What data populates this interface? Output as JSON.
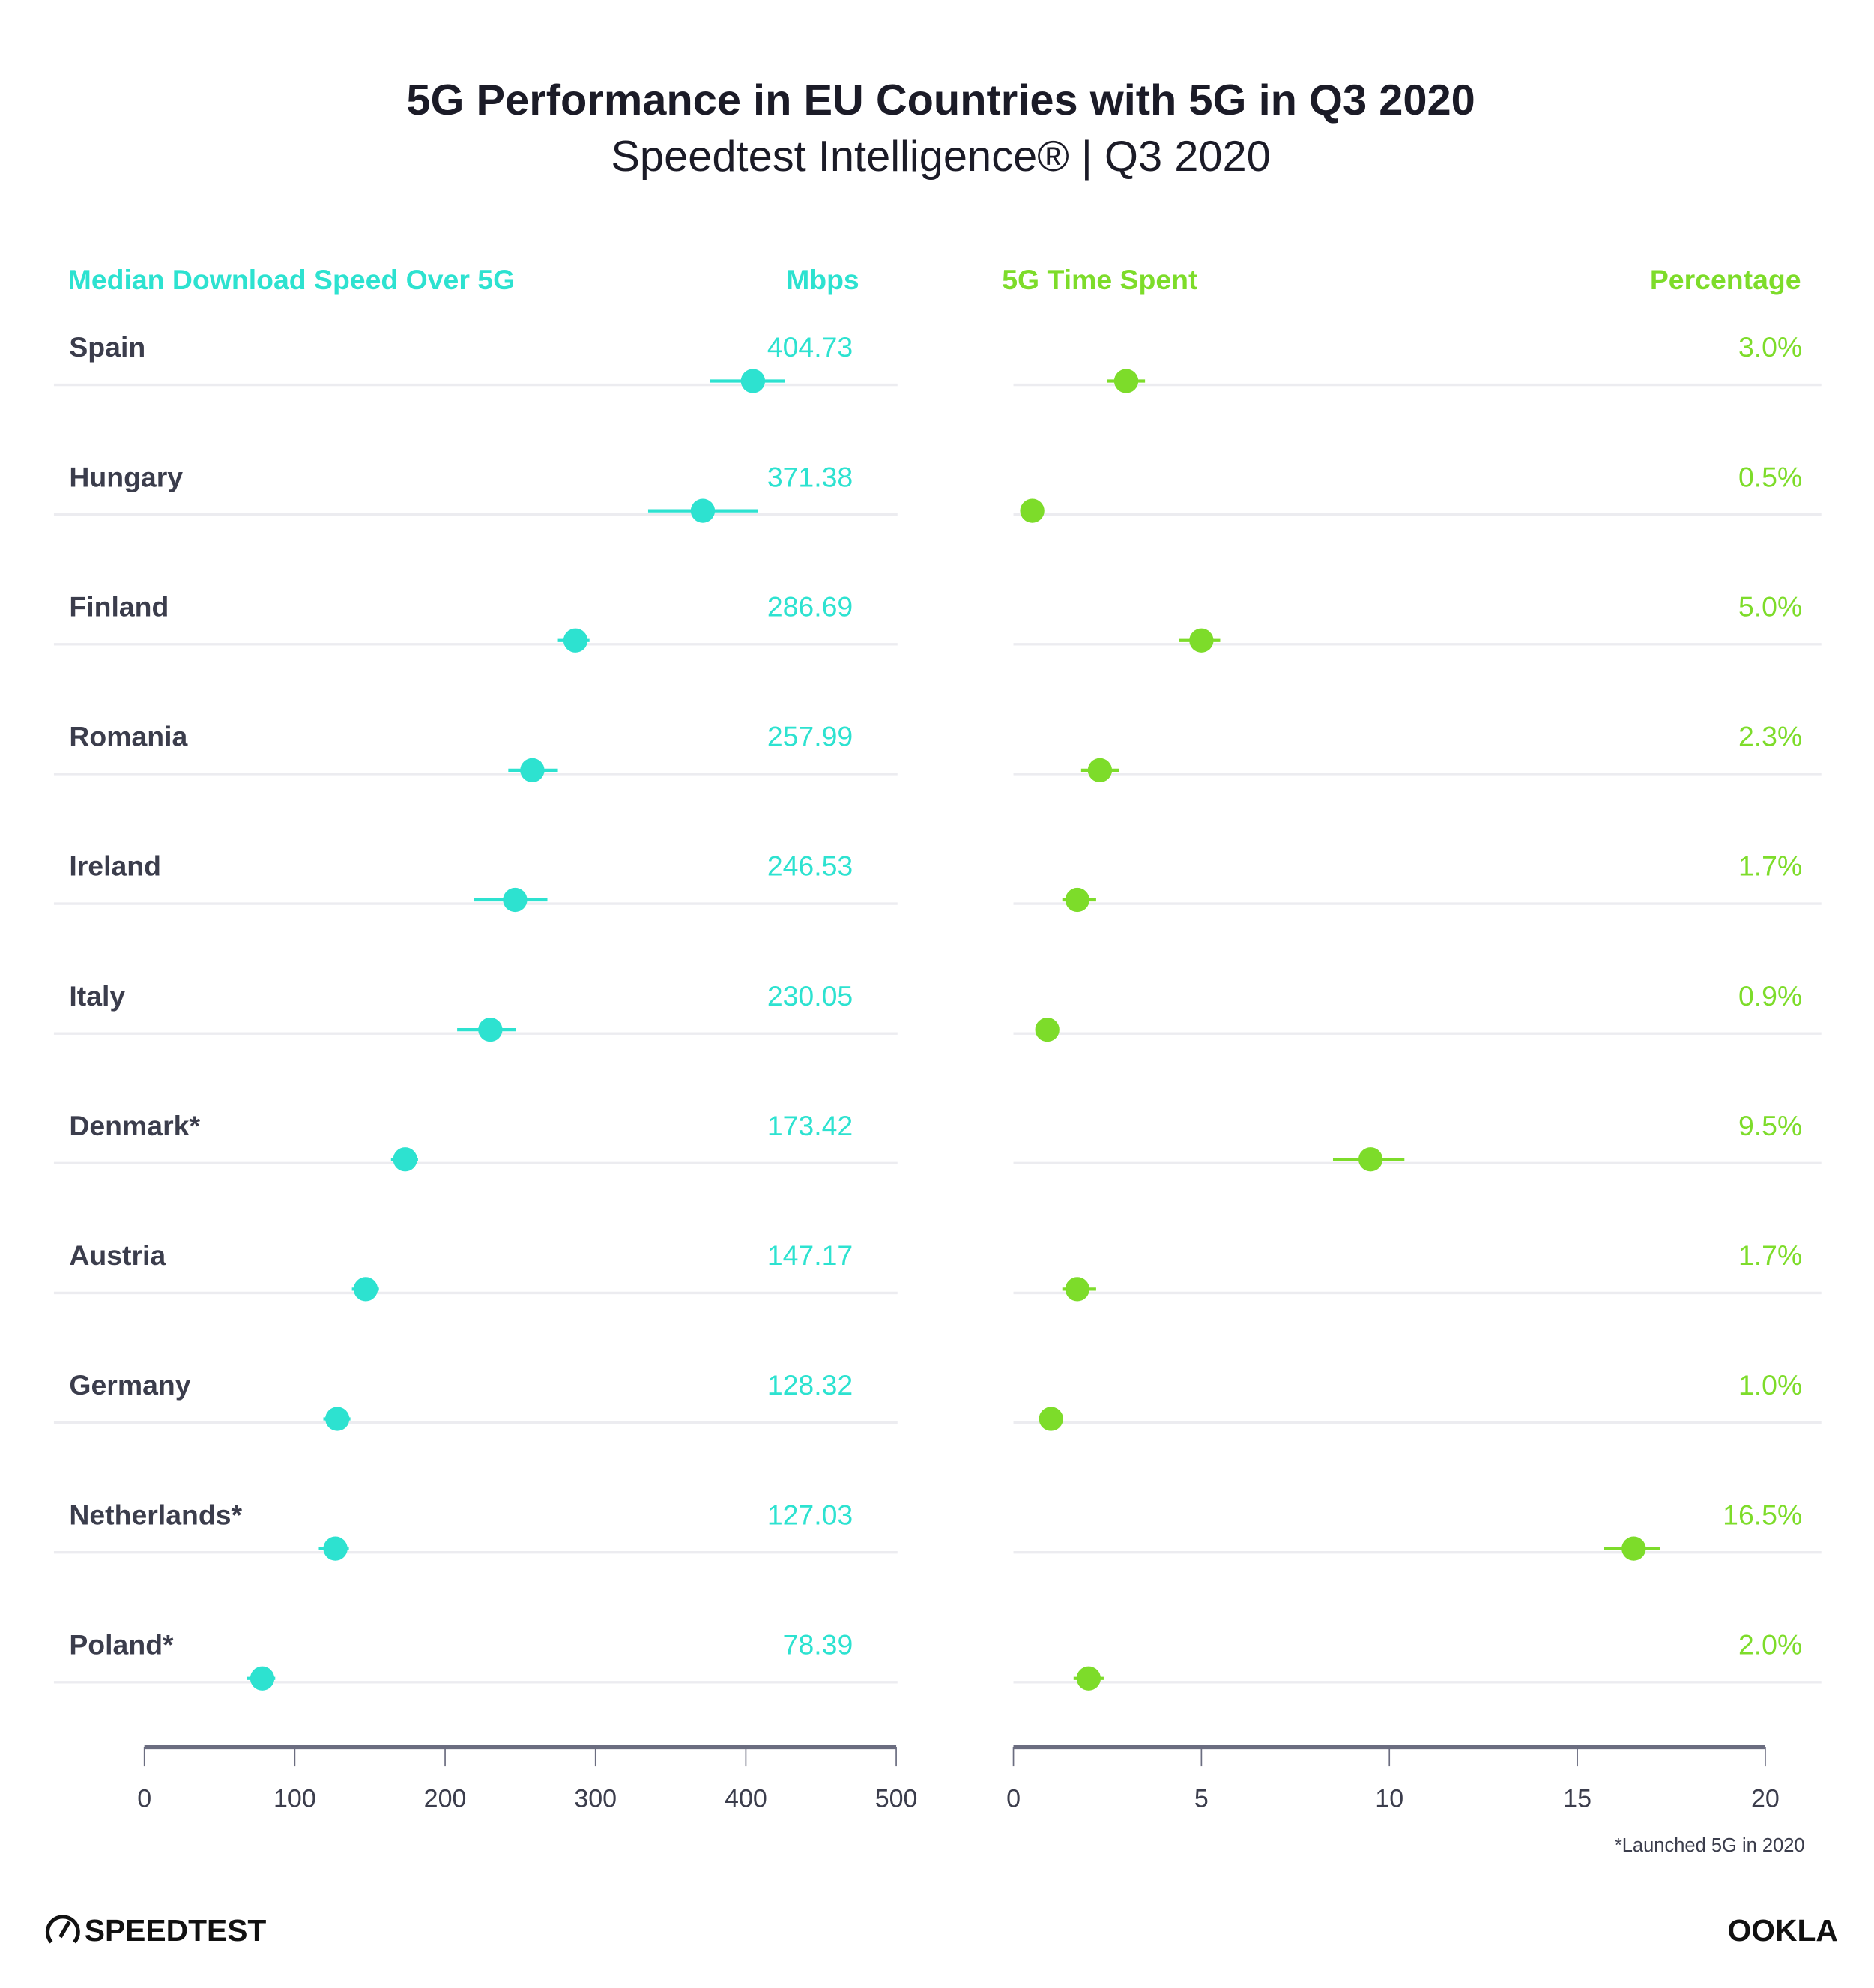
{
  "title": "5G Performance in EU Countries with 5G in Q3 2020",
  "subtitle": "Speedtest Intelligence® | Q3 2020",
  "footnote": "*Launched 5G in 2020",
  "logos": {
    "left": "SPEEDTEST",
    "right": "OOKLA"
  },
  "colors": {
    "download": "#2de2d0",
    "time": "#7ddc2a",
    "text": "#3b3d4c",
    "grid": "#ececf0",
    "axis": "#6b6d80"
  },
  "chart_data": [
    {
      "type": "scatter",
      "title": "Median Download Speed Over 5G",
      "unit_label": "Mbps",
      "xlim": [
        0,
        500
      ],
      "xticks": [
        0,
        100,
        200,
        300,
        400,
        500
      ],
      "categories": [
        "Spain",
        "Hungary",
        "Finland",
        "Romania",
        "Ireland",
        "Italy",
        "Denmark*",
        "Austria",
        "Germany",
        "Netherlands*",
        "Poland*"
      ],
      "values": [
        404.73,
        371.38,
        286.69,
        257.99,
        246.53,
        230.05,
        173.42,
        147.17,
        128.32,
        127.03,
        78.39
      ],
      "labels": [
        "404.73",
        "371.38",
        "286.69",
        "257.99",
        "246.53",
        "230.05",
        "173.42",
        "147.17",
        "128.32",
        "127.03",
        "78.39"
      ],
      "error_low": [
        376,
        335,
        275,
        242,
        219,
        208,
        164,
        138,
        119,
        116,
        68
      ],
      "error_high": [
        426,
        408,
        296,
        275,
        268,
        247,
        182,
        156,
        137,
        136,
        87
      ]
    },
    {
      "type": "scatter",
      "title": "5G Time Spent",
      "unit_label": "Percentage",
      "xlim": [
        0,
        20
      ],
      "xticks": [
        0,
        5,
        10,
        15,
        20
      ],
      "categories": [
        "Spain",
        "Hungary",
        "Finland",
        "Romania",
        "Ireland",
        "Italy",
        "Denmark*",
        "Austria",
        "Germany",
        "Netherlands*",
        "Poland*"
      ],
      "values": [
        3.0,
        0.5,
        5.0,
        2.3,
        1.7,
        0.9,
        9.5,
        1.7,
        1.0,
        16.5,
        2.0
      ],
      "labels": [
        "3.0%",
        "0.5%",
        "5.0%",
        "2.3%",
        "1.7%",
        "0.9%",
        "9.5%",
        "1.7%",
        "1.0%",
        "16.5%",
        "2.0%"
      ],
      "error_low": [
        2.5,
        0.3,
        4.4,
        1.8,
        1.3,
        0.6,
        8.5,
        1.3,
        0.7,
        15.7,
        1.6
      ],
      "error_high": [
        3.5,
        0.7,
        5.5,
        2.8,
        2.2,
        1.2,
        10.4,
        2.2,
        1.3,
        17.2,
        2.4
      ]
    }
  ]
}
